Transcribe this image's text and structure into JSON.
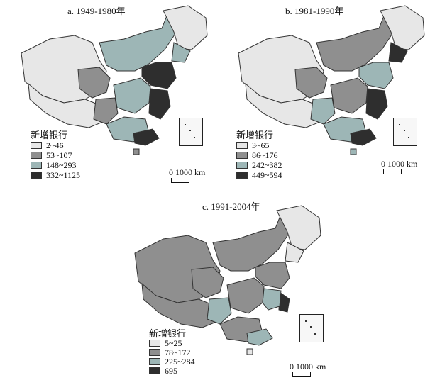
{
  "colors": {
    "class1": "#e7e7e7",
    "class2": "#8f8f8f",
    "class3": "#9db6b6",
    "class4": "#2e2e2e",
    "outline": "#333333",
    "background": "#ffffff"
  },
  "panels": [
    {
      "id": "a",
      "title": "a. 1949-1980年",
      "legend_title": "新增银行",
      "legend": [
        "2~46",
        "53~107",
        "148~293",
        "332~1125"
      ],
      "scale_label": "0  1000 km"
    },
    {
      "id": "b",
      "title": "b. 1981-1990年",
      "legend_title": "新增银行",
      "legend": [
        "3~65",
        "86~176",
        "242~382",
        "449~594"
      ],
      "scale_label": "0  1000 km"
    },
    {
      "id": "c",
      "title": "c. 1991-2004年",
      "legend_title": "新增银行",
      "legend": [
        "5~25",
        "78~172",
        "225~284",
        "695"
      ],
      "scale_label": "0  1000 km"
    }
  ]
}
